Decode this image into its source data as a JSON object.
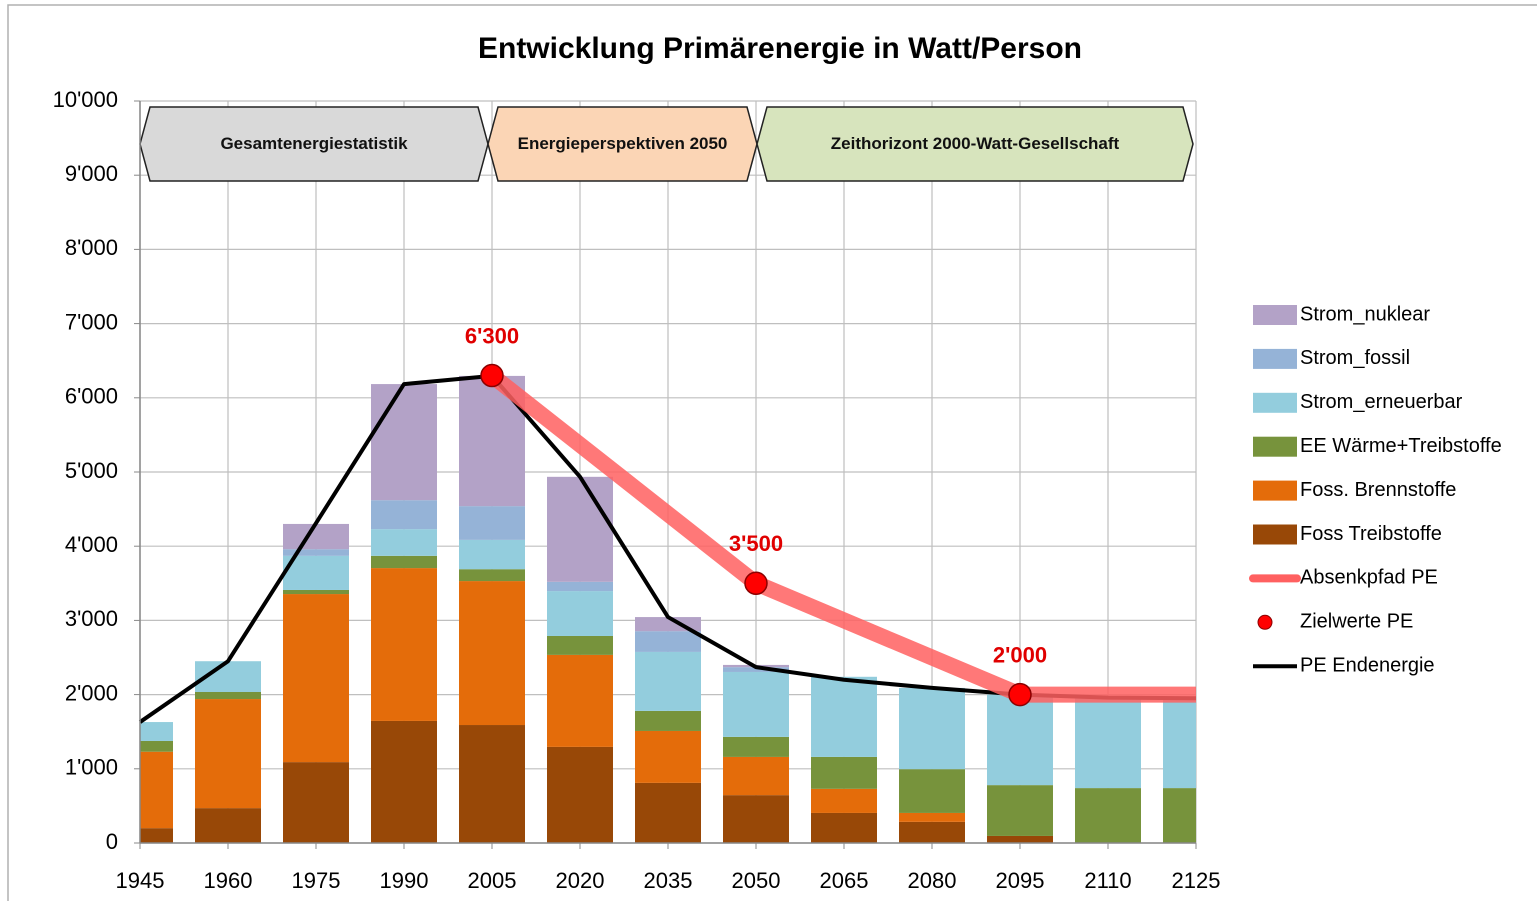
{
  "chart_data": {
    "type": "bar",
    "stacked": true,
    "title": "Entwicklung Primärenergie in Watt/Person",
    "banners": [
      "Gesamtenergiestatistik",
      "Energieperspektiven 2050",
      "Zeithorizont 2000-Watt-Gesellschaft"
    ],
    "x": [
      1945,
      1960,
      1975,
      1990,
      2005,
      2020,
      2035,
      2050,
      2065,
      2080,
      2095,
      2110,
      2125
    ],
    "xlim": [
      1945,
      2125
    ],
    "xticks": [
      1945,
      1960,
      1975,
      1990,
      2005,
      2020,
      2035,
      2050,
      2065,
      2080,
      2095,
      2110,
      2125
    ],
    "ylim": [
      0,
      10000
    ],
    "yticks": [
      0,
      {
        "value": 1000,
        "label": "1'000"
      },
      {
        "value": 2000,
        "label": "2'000"
      },
      {
        "value": 3000,
        "label": "3'000"
      },
      {
        "value": 4000,
        "label": "4'000"
      },
      {
        "value": 5000,
        "label": "5'000"
      },
      {
        "value": 6000,
        "label": "6'000"
      },
      {
        "value": 7000,
        "label": "7'000"
      },
      {
        "value": 8000,
        "label": "8'000"
      },
      {
        "value": 9000,
        "label": "9'000"
      },
      {
        "value": 10000,
        "label": "10'000"
      }
    ],
    "grid": true,
    "series": [
      {
        "name": "Foss Treibstoffe",
        "color": "#984807",
        "values": [
          200,
          470,
          1090,
          1645,
          1590,
          1295,
          810,
          645,
          405,
          285,
          95,
          0,
          0
        ]
      },
      {
        "name": "Foss. Brennstoffe",
        "color": "#e46c0a",
        "values": [
          1030,
          1470,
          2265,
          2060,
          1940,
          1240,
          700,
          515,
          325,
          120,
          0,
          0,
          0
        ]
      },
      {
        "name": "EE Wärme+Treibstoffe",
        "color": "#77933c",
        "values": [
          145,
          95,
          55,
          165,
          160,
          255,
          270,
          270,
          430,
          590,
          685,
          740,
          740
        ]
      },
      {
        "name": "Strom_erneuerbar",
        "color": "#93cddd",
        "values": [
          255,
          415,
          460,
          360,
          395,
          605,
          795,
          875,
          1080,
          1095,
          1220,
          1210,
          1210
        ]
      },
      {
        "name": "Strom_fossil",
        "color": "#95b3d7",
        "values": [
          0,
          0,
          90,
          390,
          455,
          125,
          280,
          65,
          0,
          0,
          0,
          0,
          0
        ]
      },
      {
        "name": "Strom_nuklear",
        "color": "#b3a2c7",
        "values": [
          0,
          0,
          340,
          1565,
          1755,
          1415,
          190,
          30,
          0,
          0,
          0,
          0,
          0
        ]
      }
    ],
    "lines": [
      {
        "name": "Absenkpfad PE",
        "color": "#ff6060",
        "x": [
          2005,
          2050,
          2095,
          2125
        ],
        "values": [
          6300,
          3500,
          2000,
          2000
        ]
      },
      {
        "name": "PE Endenergie",
        "color": "#000000",
        "x": [
          1945,
          1960,
          1975,
          1990,
          2005,
          2020,
          2035,
          2050,
          2065,
          2080,
          2095,
          2110,
          2125
        ],
        "values": [
          1630,
          2450,
          4310,
          6185,
          6295,
          4935,
          3045,
          2370,
          2200,
          2090,
          2000,
          1960,
          1950
        ]
      }
    ],
    "points": {
      "name": "Zielwerte PE",
      "color": "#ff0000",
      "x": [
        2005,
        2050,
        2095
      ],
      "values": [
        6300,
        3500,
        2000
      ],
      "value_labels": [
        "6'300",
        "3'500",
        "2'000"
      ]
    }
  }
}
